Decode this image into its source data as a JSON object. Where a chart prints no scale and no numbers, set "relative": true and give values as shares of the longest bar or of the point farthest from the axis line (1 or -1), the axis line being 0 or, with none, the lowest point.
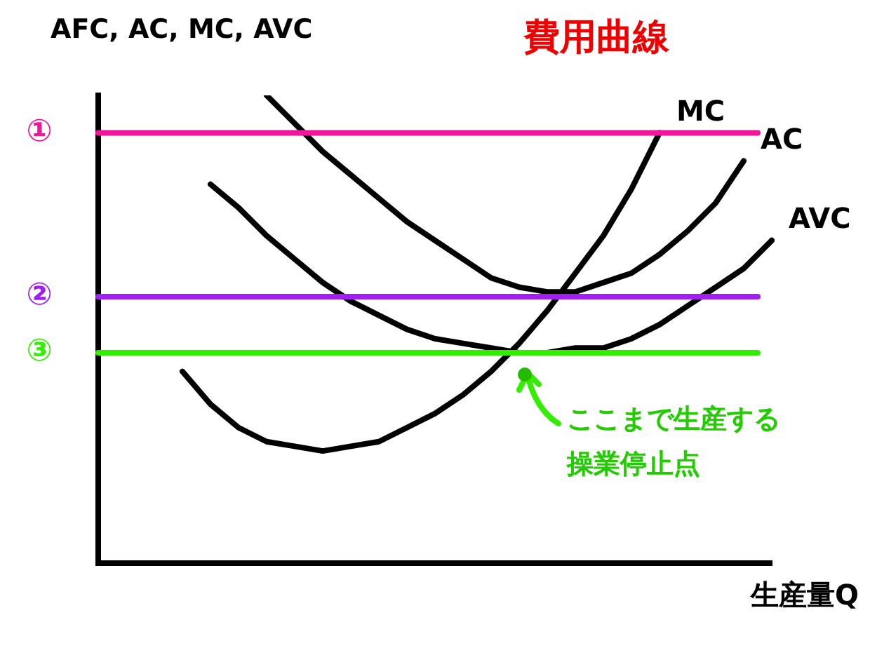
{
  "chart_data": {
    "type": "line",
    "title": "費用曲線",
    "xlabel": "生産量Q",
    "ylabel": "AFC, AC, MC, AVC",
    "relative": true,
    "grid": false,
    "legend": false,
    "marker": "none",
    "line_style": "solid",
    "categories": [
      null,
      null,
      null,
      null,
      null,
      null,
      null,
      null,
      null,
      null,
      null,
      null,
      null,
      null,
      null,
      null,
      null,
      null,
      null,
      null,
      null,
      null,
      null,
      null,
      null
    ],
    "series": [
      {
        "name": "MC",
        "color": "#000000",
        "values": [
          null,
          null,
          null,
          0.41,
          0.34,
          0.29,
          0.26,
          0.25,
          0.24,
          0.25,
          0.26,
          0.29,
          0.32,
          0.36,
          0.41,
          0.47,
          0.54,
          0.62,
          0.7,
          0.8,
          0.92,
          null,
          null,
          null,
          null
        ]
      },
      {
        "name": "AC",
        "color": "#000000",
        "values": [
          null,
          null,
          null,
          null,
          null,
          null,
          1,
          0.94,
          0.88,
          0.83,
          0.78,
          0.73,
          0.69,
          0.65,
          0.61,
          0.59,
          0.58,
          0.58,
          0.6,
          0.62,
          0.66,
          0.71,
          0.77,
          0.86,
          null
        ]
      },
      {
        "name": "AVC",
        "color": "#000000",
        "values": [
          null,
          null,
          null,
          null,
          0.81,
          0.76,
          0.7,
          0.65,
          0.6,
          0.56,
          0.53,
          0.5,
          0.48,
          0.47,
          0.46,
          0.45,
          0.45,
          0.46,
          0.46,
          0.48,
          0.51,
          0.55,
          0.59,
          0.63,
          0.69
        ]
      }
    ],
    "ref_lines": [
      {
        "axis": "y",
        "value": 0.92,
        "label": "①",
        "color": "#f0169a"
      },
      {
        "axis": "y",
        "value": 0.57,
        "label": "②",
        "color": "#a020f0"
      },
      {
        "axis": "y",
        "value": 0.45,
        "label": "③",
        "color": "#33ee00"
      }
    ],
    "annotations": [
      "ここまで生産する",
      "操業停止点"
    ]
  }
}
